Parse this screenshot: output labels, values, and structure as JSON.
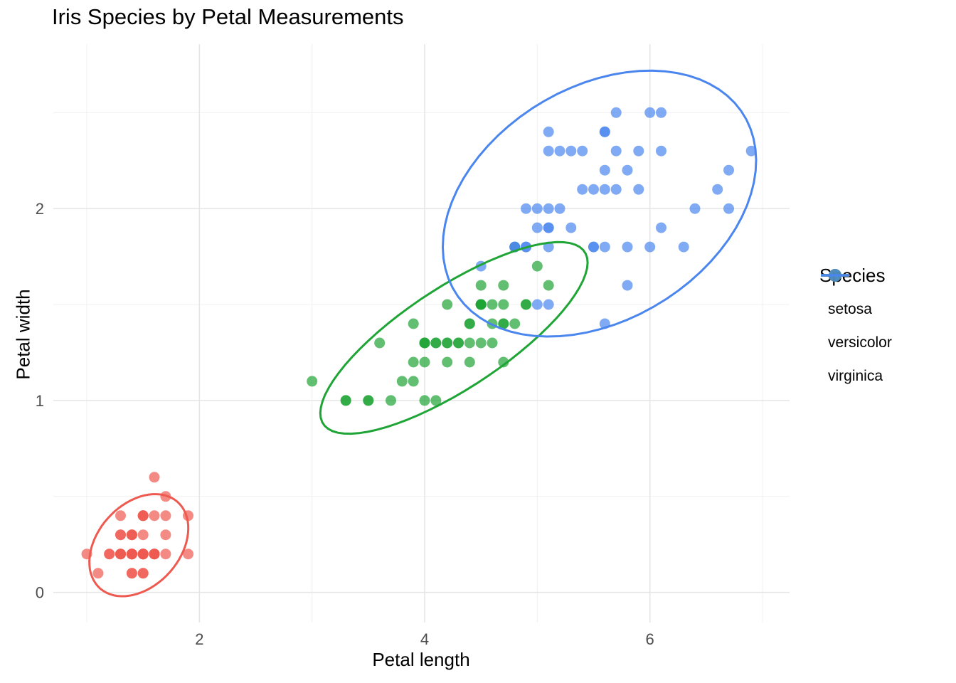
{
  "chart_data": {
    "type": "scatter",
    "title": "Iris Species by Petal Measurements",
    "xlabel": "Petal length",
    "ylabel": "Petal width",
    "xlim": [
      0.703,
      7.24
    ],
    "ylim": [
      -0.157,
      2.857
    ],
    "x_ticks": [
      2,
      4,
      6
    ],
    "y_ticks": [
      0,
      1,
      2
    ],
    "x_minor_ticks": [
      1,
      3,
      5,
      7
    ],
    "y_minor_ticks": [
      0.5,
      1.5,
      2.5
    ],
    "grid": true,
    "grid_major_color": "#E5E5E5",
    "grid_minor_color": "#F0F0F0",
    "tick_label_color": "#4D4D4D",
    "background_color": "#FFFFFF",
    "point_alpha": 0.7,
    "legend": {
      "title": "Species",
      "position": "right"
    },
    "series": [
      {
        "name": "setosa",
        "color": "#EE5A50",
        "points": [
          [
            1.4,
            0.2
          ],
          [
            1.4,
            0.2
          ],
          [
            1.3,
            0.2
          ],
          [
            1.5,
            0.2
          ],
          [
            1.4,
            0.2
          ],
          [
            1.7,
            0.4
          ],
          [
            1.4,
            0.3
          ],
          [
            1.5,
            0.2
          ],
          [
            1.4,
            0.2
          ],
          [
            1.5,
            0.1
          ],
          [
            1.5,
            0.2
          ],
          [
            1.6,
            0.2
          ],
          [
            1.4,
            0.1
          ],
          [
            1.1,
            0.1
          ],
          [
            1.2,
            0.2
          ],
          [
            1.5,
            0.4
          ],
          [
            1.3,
            0.4
          ],
          [
            1.4,
            0.3
          ],
          [
            1.7,
            0.3
          ],
          [
            1.5,
            0.3
          ],
          [
            1.7,
            0.2
          ],
          [
            1.5,
            0.4
          ],
          [
            1.0,
            0.2
          ],
          [
            1.7,
            0.5
          ],
          [
            1.9,
            0.2
          ],
          [
            1.6,
            0.2
          ],
          [
            1.6,
            0.4
          ],
          [
            1.5,
            0.2
          ],
          [
            1.4,
            0.2
          ],
          [
            1.6,
            0.2
          ],
          [
            1.6,
            0.2
          ],
          [
            1.5,
            0.4
          ],
          [
            1.5,
            0.1
          ],
          [
            1.4,
            0.2
          ],
          [
            1.5,
            0.2
          ],
          [
            1.2,
            0.2
          ],
          [
            1.3,
            0.2
          ],
          [
            1.4,
            0.1
          ],
          [
            1.3,
            0.2
          ],
          [
            1.5,
            0.2
          ],
          [
            1.3,
            0.3
          ],
          [
            1.3,
            0.3
          ],
          [
            1.3,
            0.2
          ],
          [
            1.6,
            0.6
          ],
          [
            1.9,
            0.4
          ],
          [
            1.4,
            0.3
          ],
          [
            1.6,
            0.2
          ],
          [
            1.4,
            0.2
          ],
          [
            1.5,
            0.2
          ],
          [
            1.4,
            0.2
          ]
        ]
      },
      {
        "name": "versicolor",
        "color": "#1FA436",
        "points": [
          [
            4.7,
            1.4
          ],
          [
            4.5,
            1.5
          ],
          [
            4.9,
            1.5
          ],
          [
            4.0,
            1.3
          ],
          [
            4.6,
            1.5
          ],
          [
            4.5,
            1.3
          ],
          [
            4.7,
            1.6
          ],
          [
            3.3,
            1.0
          ],
          [
            4.6,
            1.3
          ],
          [
            3.9,
            1.4
          ],
          [
            3.5,
            1.0
          ],
          [
            4.2,
            1.5
          ],
          [
            4.0,
            1.0
          ],
          [
            4.7,
            1.4
          ],
          [
            3.6,
            1.3
          ],
          [
            4.4,
            1.4
          ],
          [
            4.5,
            1.5
          ],
          [
            4.1,
            1.0
          ],
          [
            4.5,
            1.5
          ],
          [
            3.9,
            1.1
          ],
          [
            4.8,
            1.8
          ],
          [
            4.0,
            1.3
          ],
          [
            4.9,
            1.5
          ],
          [
            4.7,
            1.2
          ],
          [
            4.3,
            1.3
          ],
          [
            4.4,
            1.4
          ],
          [
            4.8,
            1.4
          ],
          [
            5.0,
            1.7
          ],
          [
            4.5,
            1.5
          ],
          [
            3.5,
            1.0
          ],
          [
            3.8,
            1.1
          ],
          [
            3.7,
            1.0
          ],
          [
            3.9,
            1.2
          ],
          [
            5.1,
            1.6
          ],
          [
            4.5,
            1.5
          ],
          [
            4.5,
            1.6
          ],
          [
            4.7,
            1.5
          ],
          [
            4.4,
            1.3
          ],
          [
            4.1,
            1.3
          ],
          [
            4.0,
            1.3
          ],
          [
            4.4,
            1.2
          ],
          [
            4.6,
            1.4
          ],
          [
            4.0,
            1.2
          ],
          [
            3.3,
            1.0
          ],
          [
            4.2,
            1.3
          ],
          [
            4.2,
            1.2
          ],
          [
            4.2,
            1.3
          ],
          [
            4.3,
            1.3
          ],
          [
            3.0,
            1.1
          ],
          [
            4.1,
            1.3
          ]
        ]
      },
      {
        "name": "virginica",
        "color": "#4A86EE",
        "points": [
          [
            6.0,
            2.5
          ],
          [
            5.1,
            1.9
          ],
          [
            5.9,
            2.1
          ],
          [
            5.6,
            1.8
          ],
          [
            5.8,
            2.2
          ],
          [
            6.6,
            2.1
          ],
          [
            4.5,
            1.7
          ],
          [
            6.3,
            1.8
          ],
          [
            5.8,
            1.8
          ],
          [
            6.1,
            2.5
          ],
          [
            5.1,
            2.0
          ],
          [
            5.3,
            1.9
          ],
          [
            5.5,
            2.1
          ],
          [
            5.0,
            2.0
          ],
          [
            5.1,
            2.4
          ],
          [
            5.3,
            2.3
          ],
          [
            5.5,
            1.8
          ],
          [
            6.7,
            2.2
          ],
          [
            6.9,
            2.3
          ],
          [
            5.0,
            1.5
          ],
          [
            5.7,
            2.3
          ],
          [
            4.9,
            2.0
          ],
          [
            6.7,
            2.0
          ],
          [
            4.9,
            1.8
          ],
          [
            5.7,
            2.1
          ],
          [
            6.0,
            1.8
          ],
          [
            4.8,
            1.8
          ],
          [
            4.9,
            1.8
          ],
          [
            5.6,
            2.1
          ],
          [
            5.8,
            1.6
          ],
          [
            6.1,
            1.9
          ],
          [
            6.4,
            2.0
          ],
          [
            5.6,
            2.2
          ],
          [
            5.1,
            1.5
          ],
          [
            5.6,
            1.4
          ],
          [
            6.1,
            2.3
          ],
          [
            5.6,
            2.4
          ],
          [
            5.5,
            1.8
          ],
          [
            4.8,
            1.8
          ],
          [
            5.4,
            2.1
          ],
          [
            5.6,
            2.4
          ],
          [
            5.1,
            2.3
          ],
          [
            5.1,
            1.9
          ],
          [
            5.9,
            2.3
          ],
          [
            5.7,
            2.5
          ],
          [
            5.2,
            2.3
          ],
          [
            5.0,
            1.9
          ],
          [
            5.2,
            2.0
          ],
          [
            5.4,
            2.3
          ],
          [
            5.1,
            1.8
          ]
        ]
      }
    ],
    "ellipses": [
      {
        "species": "setosa",
        "cx": 1.462,
        "cy": 0.246,
        "a": 0.452,
        "b": 0.244,
        "angle_deg": 16.2
      },
      {
        "species": "versicolor",
        "cx": 4.26,
        "cy": 1.326,
        "a": 1.254,
        "b": 0.292,
        "angle_deg": 19.4
      },
      {
        "species": "virginica",
        "cx": 5.552,
        "cy": 2.026,
        "a": 1.414,
        "b": 0.645,
        "angle_deg": 11.6
      }
    ]
  }
}
